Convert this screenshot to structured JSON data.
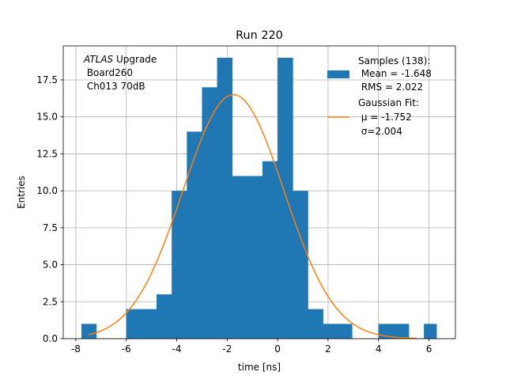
{
  "chart_data": {
    "type": "bar",
    "title": "Run 220",
    "xlabel": "time [ns]",
    "ylabel": "Entries",
    "xlim": [
      -8.5,
      7.05
    ],
    "ylim": [
      0,
      19.8
    ],
    "xticks": [
      -8,
      -6,
      -4,
      -2,
      0,
      2,
      4,
      6
    ],
    "yticks": [
      0.0,
      2.5,
      5.0,
      7.5,
      10.0,
      12.5,
      15.0,
      17.5
    ],
    "grid": true,
    "colors": {
      "histogram": "#1f77b4",
      "fit": "#ff7f0e",
      "grid": "#b0b0b0"
    },
    "histogram": {
      "bin_edges": [
        -7.8,
        -7.2,
        -6.6,
        -6.0,
        -5.4,
        -4.8,
        -4.2,
        -3.6,
        -3.0,
        -2.4,
        -1.8,
        -1.2,
        -0.6,
        0.0,
        0.6,
        1.2,
        1.8,
        2.4,
        3.0,
        3.6,
        4.2,
        4.8,
        5.4,
        6.0,
        6.6
      ],
      "bins": [
        {
          "x0": -7.78,
          "x1": -7.19,
          "value": 1
        },
        {
          "x0": -6.0,
          "x1": -5.4,
          "value": 2
        },
        {
          "x0": -5.4,
          "x1": -4.8,
          "value": 2
        },
        {
          "x0": -4.8,
          "x1": -4.2,
          "value": 3
        },
        {
          "x0": -4.2,
          "x1": -3.6,
          "value": 10
        },
        {
          "x0": -3.6,
          "x1": -3.0,
          "value": 14
        },
        {
          "x0": -3.0,
          "x1": -2.4,
          "value": 17
        },
        {
          "x0": -2.4,
          "x1": -1.8,
          "value": 19
        },
        {
          "x0": -1.8,
          "x1": -1.2,
          "value": 11
        },
        {
          "x0": -1.2,
          "x1": -0.6,
          "value": 11
        },
        {
          "x0": -0.6,
          "x1": 0.0,
          "value": 12
        },
        {
          "x0": 0.0,
          "x1": 0.6,
          "value": 19
        },
        {
          "x0": 0.6,
          "x1": 1.2,
          "value": 10
        },
        {
          "x0": 1.2,
          "x1": 1.8,
          "value": 2
        },
        {
          "x0": 1.8,
          "x1": 2.4,
          "value": 1
        },
        {
          "x0": 2.4,
          "x1": 2.95,
          "value": 1
        },
        {
          "x0": 4.0,
          "x1": 4.6,
          "value": 1
        },
        {
          "x0": 4.6,
          "x1": 5.2,
          "value": 1
        },
        {
          "x0": 5.8,
          "x1": 6.3,
          "value": 1
        }
      ]
    },
    "fit": {
      "type": "gaussian",
      "mu": -1.752,
      "sigma": 2.004,
      "amplitude": 16.5,
      "x_range": [
        -7.5,
        5.5
      ]
    },
    "annotation": {
      "italic_word": "ATLAS",
      "first_line_rest": " Upgrade",
      "line2": " Board260",
      "line3": " Ch013 70dB"
    },
    "legend": {
      "position": "top-right",
      "samples_line1": "Samples (138):",
      "samples_line2": " Mean = -1.648",
      "samples_line3": " RMS = 2.022",
      "fit_line1": "Gaussian Fit:",
      "fit_line2": " μ = -1.752",
      "fit_line3": " σ=2.004"
    }
  }
}
